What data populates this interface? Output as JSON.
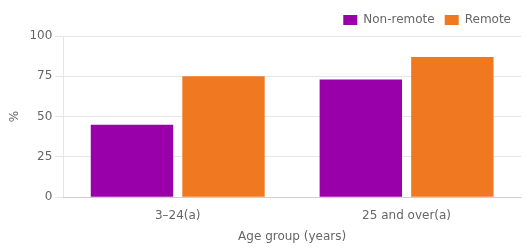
{
  "chart_data": {
    "type": "bar",
    "categories": [
      "3–24(a)",
      "25 and over(a)"
    ],
    "series": [
      {
        "name": "Non-remote",
        "color": "#9900AA",
        "values": [
          45,
          73
        ]
      },
      {
        "name": "Remote",
        "color": "#F07820",
        "values": [
          75,
          87
        ]
      }
    ],
    "xlabel": "Age group (years)",
    "ylabel": "%",
    "ylim": [
      0,
      100
    ],
    "yticks": [
      0,
      25,
      50,
      75,
      100
    ],
    "grid": true,
    "legend": "upper right"
  }
}
